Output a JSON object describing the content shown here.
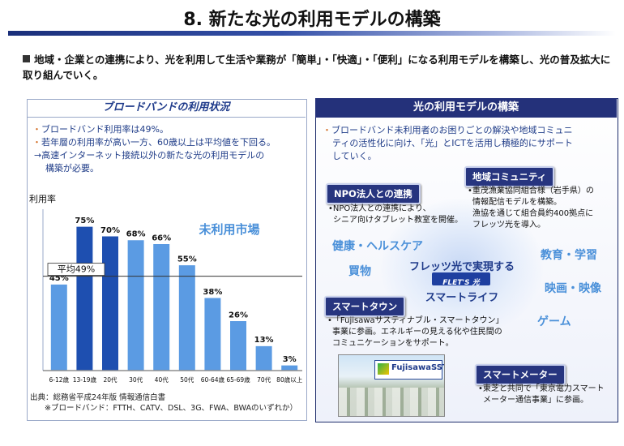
{
  "header": {
    "title": "8. 新たな光の利用モデルの構築",
    "lead": "地域・企業との連携により、光を利用して生活や業務が「簡単」・「快適」・「便利」になる利用モデルを構築し、光の普及拡大に取り組んでいく。"
  },
  "left_panel": {
    "heading": "ブロードバンドの利用状況",
    "notes": [
      "ブロードバンド利用率は49%。",
      "若年層の利用率が高い一方、60歳以上は平均値を下回る。"
    ],
    "arrow_note_1": "→高速インターネット接続以外の新たな光の利用モデルの",
    "arrow_note_2": "構築が必要。",
    "source_1": "出典：総務省平成24年版 情報通信白書",
    "source_2": "※ブロードバンド：FTTH、CATV、DSL、3G、FWA、BWAのいずれか）"
  },
  "chart_data": {
    "type": "bar",
    "ylabel": "利用率",
    "categories": [
      "6-12歳",
      "13-19歳",
      "20代",
      "30代",
      "40代",
      "50代",
      "60-64歳",
      "65-69歳",
      "70代",
      "80歳以上"
    ],
    "values": [
      45,
      75,
      70,
      68,
      66,
      55,
      38,
      26,
      13,
      3
    ],
    "value_labels": [
      "45%",
      "75%",
      "70%",
      "68%",
      "66%",
      "55%",
      "38%",
      "26%",
      "13%",
      "3%"
    ],
    "average": 49,
    "average_label": "平均49%",
    "annotation": "未利用市場",
    "ylim": [
      0,
      80
    ]
  },
  "right_panel": {
    "heading": "光の利用モデルの構築",
    "intro_1": "ブロードバンド未利用者のお困りごとの解決や地域コミュニ",
    "intro_2": "ティの活性化に向け、「光」とICTを活用し積極的にサポート",
    "intro_3": "していく。",
    "center_1": "フレッツ光で実現する",
    "center_2": "スマートライフ",
    "center_logo": "FLET'S 光",
    "center_logo_sub": "NTT東日本",
    "words": {
      "health": "健康・ヘルスケア",
      "shopping": "買物",
      "education": "教育・学習",
      "movies": "映画・映像",
      "game": "ゲーム"
    },
    "npo": {
      "tag": "NPO法人との連携",
      "text_1": "•NPO法人との連携により、",
      "text_2": "シニア向けタブレット教室を開催。"
    },
    "community": {
      "tag": "地域コミュニティ",
      "text_1": "•重茂漁業協同組合様（岩手県）の",
      "text_2": "情報配信モデルを構築。",
      "text_3": "漁協を通じて組合員約400拠点に",
      "text_4": "フレッツ光を導入。"
    },
    "smart_town": {
      "tag": "スマートタウン",
      "text_1": "•「Fujisawaサスティナブル・スマートタウン」",
      "text_2": "事業に参画。エネルギーの見える化や住民間の",
      "text_3": "コミュニケーションをサポート。",
      "logo": "FujisawaSST"
    },
    "smart_meter": {
      "tag": "スマートメーター",
      "text_1": "•東芝と共同で「東京電力スマート",
      "text_2": "メーター通信事業」に参画。"
    }
  },
  "colors": {
    "bar": "#5b9be3",
    "bar_highlight": "#1e4fb0",
    "accent": "#24317a",
    "annotation": "#4a90d9"
  }
}
